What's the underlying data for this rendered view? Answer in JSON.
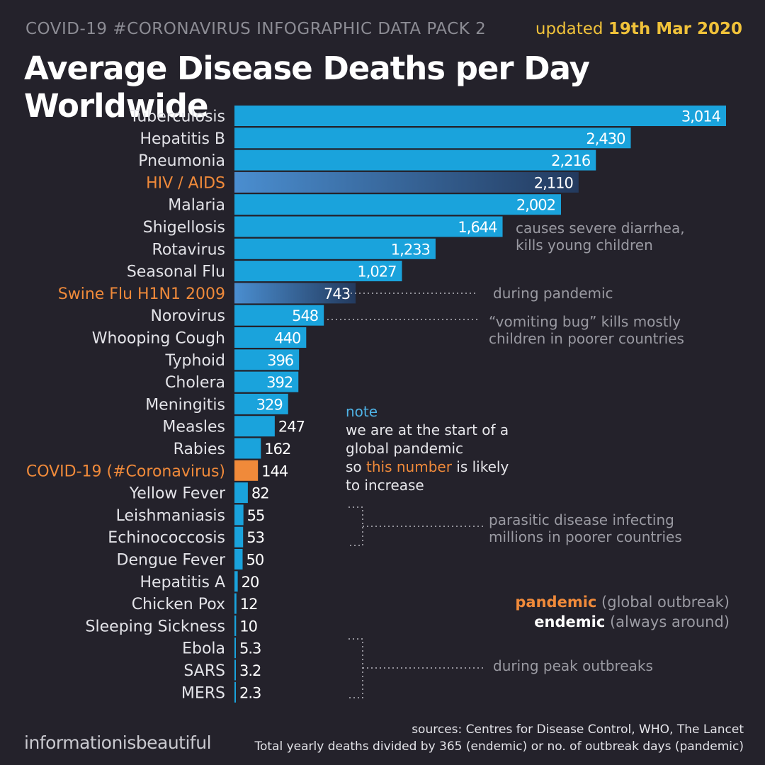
{
  "header": {
    "series_label": "COVID-19 #CORONAVIRUS INFOGRAPHIC DATA PACK 2",
    "updated_prefix": "updated",
    "updated_date": "19th Mar 2020",
    "title": "Average Disease Deaths per Day Worldwide"
  },
  "colors": {
    "background": "#24222b",
    "bar": "#1aa3dc",
    "highlight": "#f08a3a",
    "accent": "#f0c23a"
  },
  "chart_data": {
    "type": "bar",
    "orientation": "horizontal",
    "title": "Average Disease Deaths per Day Worldwide",
    "categories": [
      "Tuberculosis",
      "Hepatitis B",
      "Pneumonia",
      "HIV / AIDS",
      "Malaria",
      "Shigellosis",
      "Rotavirus",
      "Seasonal Flu",
      "Swine Flu H1N1 2009",
      "Norovirus",
      "Whooping Cough",
      "Typhoid",
      "Cholera",
      "Meningitis",
      "Measles",
      "Rabies",
      "COVID-19 (#Coronavirus)",
      "Yellow Fever",
      "Leishmaniasis",
      "Echinococcosis",
      "Dengue Fever",
      "Hepatitis A",
      "Chicken Pox",
      "Sleeping Sickness",
      "Ebola",
      "SARS",
      "MERS"
    ],
    "values": [
      3014,
      2430,
      2216,
      2110,
      2002,
      1644,
      1233,
      1027,
      743,
      548,
      440,
      396,
      392,
      329,
      247,
      162,
      144,
      82,
      55,
      53,
      50,
      20,
      12,
      10,
      5.3,
      3.2,
      2.3
    ],
    "value_labels": [
      "3,014",
      "2,430",
      "2,216",
      "2,110",
      "2,002",
      "1,644",
      "1,233",
      "1,027",
      "743",
      "548",
      "440",
      "396",
      "392",
      "329",
      "247",
      "162",
      "144",
      "82",
      "55",
      "53",
      "50",
      "20",
      "12",
      "10",
      "5.3",
      "3.2",
      "2.3"
    ],
    "kinds": [
      "endemic",
      "endemic",
      "endemic",
      "pandemic-gradient",
      "endemic",
      "endemic",
      "endemic",
      "endemic",
      "pandemic-gradient",
      "endemic",
      "endemic",
      "endemic",
      "endemic",
      "endemic",
      "endemic",
      "endemic",
      "pandemic",
      "endemic",
      "endemic",
      "endemic",
      "endemic",
      "endemic",
      "endemic",
      "endemic",
      "endemic",
      "endemic",
      "endemic"
    ],
    "highlighted_labels": [
      "HIV / AIDS",
      "Swine Flu H1N1 2009",
      "COVID-19 (#Coronavirus)"
    ],
    "xlim": [
      0,
      3014
    ],
    "grid": false
  },
  "annotations": {
    "shigellosis": "causes severe diarrhea,\nkills young children",
    "swine_flu": "during pandemic",
    "norovirus": "“vomiting bug” kills mostly\nchildren in poorer countries",
    "parasitic": "parasitic disease infecting\nmillions in poorer countries",
    "peak": "during peak outbreaks"
  },
  "note": {
    "heading": "note",
    "line1": "we are at the start of a",
    "line2": "global pandemic",
    "line3_pre": "so ",
    "line3_hl": "this number",
    "line3_post": " is likely",
    "line4": "to increase"
  },
  "legend": {
    "pandemic_label": "pandemic",
    "pandemic_desc": "(global outbreak)",
    "endemic_label": "endemic",
    "endemic_desc": "(always around)"
  },
  "footer": {
    "brand": "informationisbeautiful",
    "sources": "sources: Centres for Disease Control, WHO, The Lancet",
    "method": "Total yearly deaths divided by 365 (endemic) or no. of outbreak days (pandemic)"
  }
}
